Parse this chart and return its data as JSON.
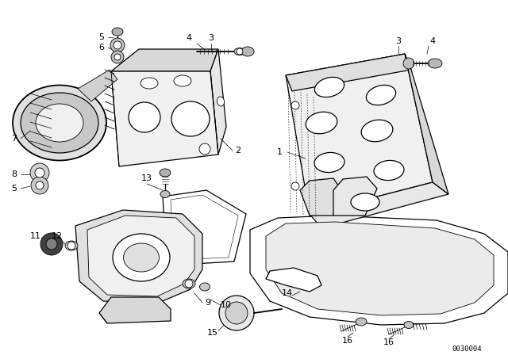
{
  "bg_color": "#ffffff",
  "line_color": "#000000",
  "fig_width": 6.4,
  "fig_height": 4.48,
  "dpi": 100,
  "watermark": "0030004"
}
